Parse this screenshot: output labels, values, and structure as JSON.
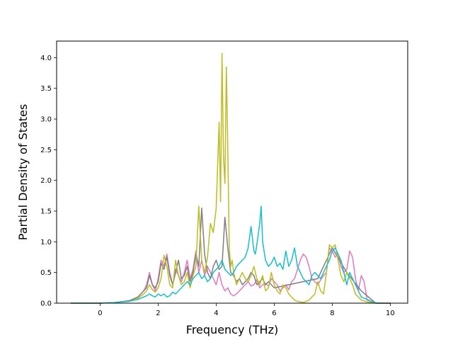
{
  "chart_data": {
    "type": "line",
    "xlabel": "Frequency (THz)",
    "ylabel": "Partial Density of States",
    "xlim": [
      -1.5,
      10.6
    ],
    "ylim": [
      0,
      4.27
    ],
    "xticks": [
      0,
      2,
      4,
      6,
      8,
      10
    ],
    "yticks": [
      0.0,
      0.5,
      1.0,
      1.5,
      2.0,
      2.5,
      3.0,
      3.5,
      4.0
    ],
    "xtick_labels": [
      "0",
      "2",
      "4",
      "6",
      "8",
      "10"
    ],
    "ytick_labels": [
      "0.0",
      "0.5",
      "1.0",
      "1.5",
      "2.0",
      "2.5",
      "3.0",
      "3.5",
      "4.0"
    ],
    "grid": false,
    "series": [
      {
        "color": "#e377c2",
        "x": [
          -1.0,
          0.0,
          0.5,
          1.0,
          1.3,
          1.5,
          1.6,
          1.7,
          1.8,
          1.9,
          2.0,
          2.1,
          2.2,
          2.3,
          2.4,
          2.5,
          2.6,
          2.7,
          2.8,
          2.9,
          3.0,
          3.1,
          3.2,
          3.3,
          3.4,
          3.5,
          3.6,
          3.7,
          3.8,
          3.9,
          4.0,
          4.1,
          4.2,
          4.3,
          4.4,
          4.5,
          4.6,
          4.7,
          4.8,
          4.9,
          5.0,
          5.1,
          5.2,
          5.3,
          5.4,
          5.5,
          5.6,
          5.7,
          5.8,
          5.9,
          6.0,
          6.1,
          6.2,
          6.3,
          6.4,
          6.5,
          6.6,
          6.7,
          6.8,
          6.9,
          7.0,
          7.1,
          7.2,
          7.3,
          7.4,
          7.5,
          7.6,
          7.7,
          7.8,
          7.9,
          8.0,
          8.1,
          8.2,
          8.3,
          8.4,
          8.5,
          8.6,
          8.7,
          8.8,
          8.9,
          9.0,
          9.1,
          9.2,
          9.5,
          10.0
        ],
        "y": [
          0.0,
          0.0,
          0.01,
          0.04,
          0.1,
          0.2,
          0.3,
          0.5,
          0.3,
          0.2,
          0.4,
          0.7,
          0.6,
          0.8,
          0.5,
          0.3,
          0.55,
          0.45,
          0.35,
          0.5,
          0.7,
          0.4,
          0.55,
          0.85,
          0.5,
          0.7,
          0.45,
          0.6,
          0.5,
          0.4,
          0.3,
          0.5,
          0.3,
          0.2,
          0.25,
          0.15,
          0.12,
          0.15,
          0.2,
          0.25,
          0.3,
          0.35,
          0.28,
          0.3,
          0.38,
          0.25,
          0.3,
          0.32,
          0.28,
          0.4,
          0.35,
          0.3,
          0.2,
          0.25,
          0.3,
          0.22,
          0.35,
          0.4,
          0.55,
          0.7,
          0.8,
          0.75,
          0.6,
          0.4,
          0.35,
          0.3,
          0.38,
          0.45,
          0.5,
          0.9,
          0.85,
          0.75,
          0.8,
          0.6,
          0.5,
          0.55,
          0.85,
          0.75,
          0.4,
          0.2,
          0.45,
          0.35,
          0.05,
          0.0,
          0.0
        ]
      },
      {
        "color": "#7f7f7f",
        "x": [
          -1.0,
          0.0,
          0.5,
          1.0,
          1.3,
          1.5,
          1.6,
          1.7,
          1.8,
          1.9,
          2.0,
          2.1,
          2.2,
          2.3,
          2.4,
          2.5,
          2.6,
          2.7,
          2.8,
          2.9,
          3.0,
          3.1,
          3.2,
          3.3,
          3.4,
          3.5,
          3.6,
          3.7,
          3.8,
          3.9,
          4.0,
          4.1,
          4.2,
          4.3,
          4.4,
          4.5,
          4.6,
          4.7,
          4.8,
          4.9,
          5.0,
          5.1,
          5.2,
          5.3,
          5.4,
          5.5,
          5.6,
          5.7,
          5.8,
          5.9,
          6.0,
          6.5,
          7.0,
          7.5,
          8.0,
          8.5,
          9.0,
          9.5,
          10.0
        ],
        "y": [
          0.0,
          0.0,
          0.01,
          0.04,
          0.1,
          0.2,
          0.25,
          0.45,
          0.3,
          0.25,
          0.35,
          0.65,
          0.55,
          0.75,
          0.45,
          0.3,
          0.5,
          0.7,
          0.4,
          0.45,
          0.6,
          0.35,
          0.5,
          0.8,
          0.6,
          1.55,
          0.8,
          0.5,
          0.4,
          0.6,
          0.7,
          0.55,
          0.6,
          1.4,
          0.9,
          0.5,
          0.45,
          0.35,
          0.4,
          0.3,
          0.35,
          0.4,
          0.5,
          0.45,
          0.3,
          0.35,
          0.4,
          0.3,
          0.35,
          0.3,
          0.25,
          0.3,
          0.35,
          0.4,
          0.9,
          0.5,
          0.2,
          0.0,
          0.0
        ]
      },
      {
        "color": "#bcbd22",
        "x": [
          -1.0,
          0.0,
          0.5,
          1.0,
          1.3,
          1.5,
          1.6,
          1.7,
          1.8,
          1.9,
          2.0,
          2.1,
          2.2,
          2.3,
          2.4,
          2.5,
          2.6,
          2.7,
          2.8,
          2.9,
          3.0,
          3.1,
          3.2,
          3.3,
          3.4,
          3.5,
          3.6,
          3.7,
          3.8,
          3.9,
          4.0,
          4.1,
          4.15,
          4.2,
          4.25,
          4.3,
          4.35,
          4.4,
          4.45,
          4.5,
          4.55,
          4.6,
          4.7,
          4.8,
          4.9,
          5.0,
          5.1,
          5.2,
          5.3,
          5.4,
          5.5,
          5.6,
          5.7,
          5.8,
          5.9,
          6.0,
          6.1,
          6.2,
          6.3,
          6.4,
          6.5,
          6.6,
          6.7,
          6.8,
          6.9,
          7.0,
          7.2,
          7.4,
          7.5,
          7.6,
          7.7,
          7.8,
          7.9,
          8.0,
          8.1,
          8.2,
          8.3,
          8.4,
          8.5,
          8.6,
          8.7,
          8.8,
          8.9,
          9.0,
          9.2,
          9.5,
          10.0
        ],
        "y": [
          0.0,
          0.0,
          0.01,
          0.03,
          0.08,
          0.15,
          0.2,
          0.3,
          0.22,
          0.18,
          0.25,
          0.4,
          0.78,
          0.6,
          0.3,
          0.25,
          0.7,
          0.45,
          0.3,
          0.35,
          0.5,
          0.25,
          0.45,
          0.6,
          1.58,
          0.7,
          0.5,
          0.75,
          1.3,
          1.15,
          1.55,
          2.95,
          1.65,
          4.07,
          2.4,
          1.95,
          3.85,
          2.5,
          0.9,
          0.6,
          0.7,
          0.5,
          0.3,
          0.4,
          0.5,
          0.4,
          0.35,
          0.45,
          0.6,
          0.4,
          0.3,
          0.45,
          0.2,
          0.25,
          0.5,
          0.3,
          0.2,
          0.15,
          0.3,
          0.25,
          0.15,
          0.1,
          0.05,
          0.03,
          0.02,
          0.01,
          0.05,
          0.15,
          0.35,
          0.2,
          0.15,
          0.5,
          0.95,
          0.9,
          0.95,
          0.7,
          0.45,
          0.35,
          0.5,
          0.4,
          0.3,
          0.15,
          0.1,
          0.05,
          0.02,
          0.0,
          0.0
        ]
      },
      {
        "color": "#17becf",
        "x": [
          -1.0,
          0.0,
          0.5,
          1.0,
          1.3,
          1.5,
          1.6,
          1.7,
          1.8,
          1.9,
          2.0,
          2.1,
          2.2,
          2.3,
          2.4,
          2.5,
          2.6,
          2.7,
          2.8,
          2.9,
          3.0,
          3.1,
          3.2,
          3.3,
          3.4,
          3.5,
          3.6,
          3.7,
          3.8,
          3.9,
          4.0,
          4.1,
          4.2,
          4.3,
          4.4,
          4.5,
          4.6,
          4.7,
          4.8,
          4.9,
          5.0,
          5.1,
          5.2,
          5.3,
          5.35,
          5.4,
          5.5,
          5.55,
          5.6,
          5.7,
          5.8,
          5.9,
          6.0,
          6.1,
          6.2,
          6.3,
          6.4,
          6.5,
          6.6,
          6.7,
          6.8,
          6.9,
          7.0,
          7.1,
          7.2,
          7.3,
          7.4,
          7.5,
          7.6,
          7.7,
          7.8,
          7.9,
          8.0,
          8.1,
          8.2,
          8.3,
          8.4,
          8.5,
          8.6,
          8.7,
          8.8,
          8.9,
          9.0,
          9.5,
          10.0
        ],
        "y": [
          0.0,
          0.0,
          0.01,
          0.03,
          0.06,
          0.1,
          0.12,
          0.15,
          0.12,
          0.1,
          0.15,
          0.12,
          0.15,
          0.1,
          0.12,
          0.18,
          0.15,
          0.2,
          0.25,
          0.3,
          0.35,
          0.3,
          0.4,
          0.45,
          0.5,
          0.4,
          0.45,
          0.35,
          0.4,
          0.5,
          0.55,
          0.6,
          0.7,
          0.55,
          0.5,
          0.45,
          0.5,
          0.6,
          0.65,
          0.7,
          0.75,
          0.9,
          1.25,
          0.85,
          0.8,
          0.95,
          1.3,
          1.58,
          1.0,
          0.7,
          0.6,
          0.65,
          0.75,
          0.6,
          0.65,
          0.55,
          0.85,
          0.6,
          0.7,
          0.9,
          0.6,
          0.5,
          0.4,
          0.35,
          0.3,
          0.45,
          0.5,
          0.45,
          0.4,
          0.5,
          0.6,
          0.7,
          0.85,
          0.9,
          0.8,
          0.7,
          0.5,
          0.3,
          0.5,
          0.4,
          0.3,
          0.2,
          0.1,
          0.0,
          0.0
        ]
      }
    ]
  }
}
